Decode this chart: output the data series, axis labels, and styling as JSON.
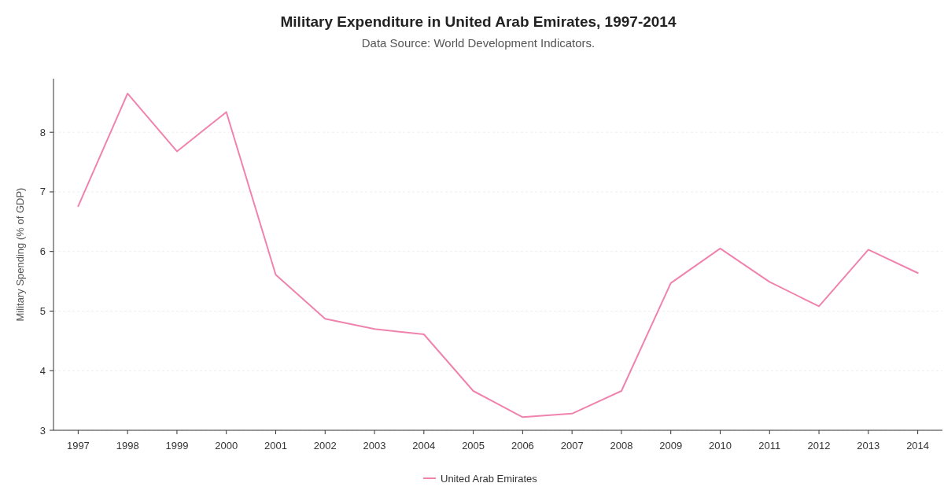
{
  "chart_data": {
    "type": "line",
    "title": "Military Expenditure in United Arab Emirates, 1997-2014",
    "subtitle": "Data Source: World Development Indicators.",
    "ylabel": "Military Spending (% of GDP)",
    "categories": [
      "1997",
      "1998",
      "1999",
      "2000",
      "2001",
      "2002",
      "2003",
      "2004",
      "2005",
      "2006",
      "2007",
      "2008",
      "2009",
      "2010",
      "2011",
      "2012",
      "2013",
      "2014"
    ],
    "series": [
      {
        "name": "United Arab Emirates",
        "color": "#f083ae",
        "values": [
          6.76,
          8.65,
          7.68,
          8.34,
          5.61,
          4.87,
          4.7,
          4.61,
          3.66,
          3.22,
          3.28,
          3.66,
          5.47,
          6.05,
          5.49,
          5.08,
          6.03,
          5.64
        ]
      }
    ],
    "ylim": [
      3,
      8.9
    ],
    "yticks": [
      3,
      4,
      5,
      6,
      7,
      8
    ],
    "grid": "y",
    "legend": "bottom",
    "marker": "none",
    "line_style": "solid"
  }
}
